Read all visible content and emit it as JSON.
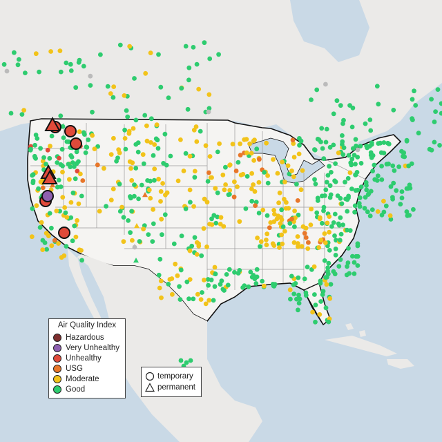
{
  "legend": {
    "title": "Air Quality Index",
    "categories": [
      {
        "label": "Hazardous",
        "color": "#7e2e2e"
      },
      {
        "label": "Very Unhealthy",
        "color": "#8e5fb0"
      },
      {
        "label": "Unhealthy",
        "color": "#e04a3a"
      },
      {
        "label": "USG",
        "color": "#e8772a"
      },
      {
        "label": "Moderate",
        "color": "#f2c31a"
      },
      {
        "label": "Good",
        "color": "#2ecc6f"
      }
    ]
  },
  "monitor_types": [
    {
      "label": "temporary",
      "shape": "circle-icon"
    },
    {
      "label": "permanent",
      "shape": "triangle-icon"
    }
  ],
  "colors": {
    "water": "#c9d9e6",
    "land": "#ececea",
    "us_land": "#f4f3f1",
    "border": "#111111",
    "state_lines": "#9a9a9a",
    "unknown": "#bbbbbb"
  }
}
